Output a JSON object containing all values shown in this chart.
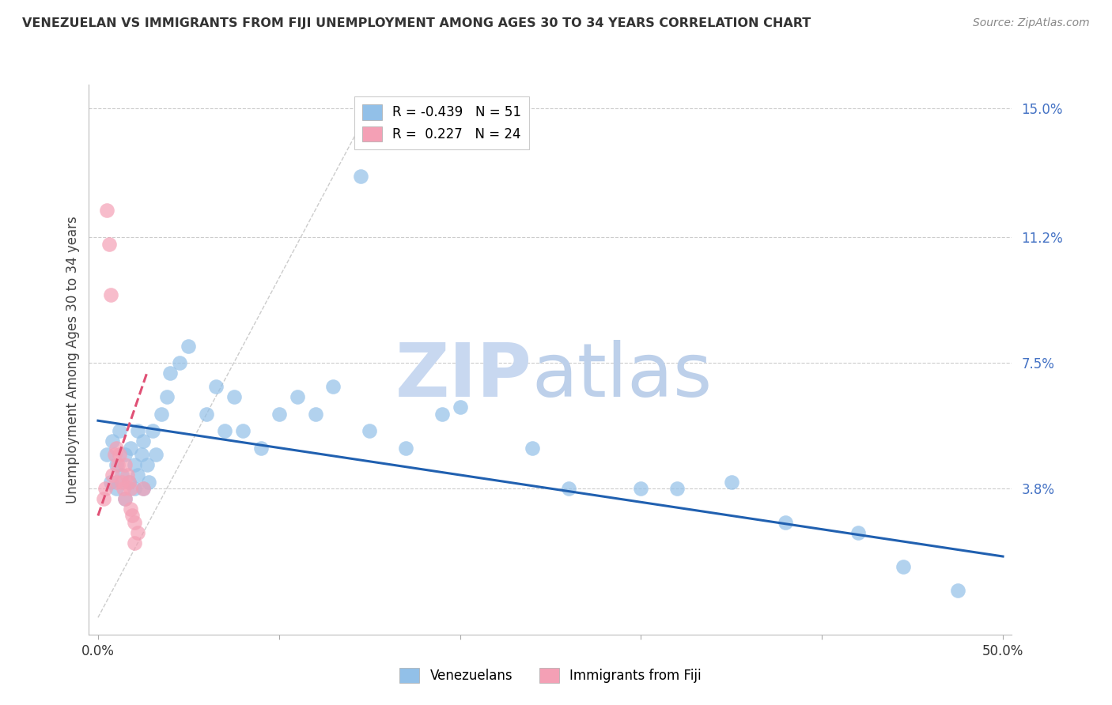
{
  "title": "VENEZUELAN VS IMMIGRANTS FROM FIJI UNEMPLOYMENT AMONG AGES 30 TO 34 YEARS CORRELATION CHART",
  "source": "Source: ZipAtlas.com",
  "ylabel": "Unemployment Among Ages 30 to 34 years",
  "xlabel_venezuelans": "Venezuelans",
  "xlabel_fiji": "Immigrants from Fiji",
  "xlim": [
    0.0,
    0.5
  ],
  "ylim": [
    0.0,
    0.155
  ],
  "ytick_vals": [
    0.038,
    0.075,
    0.112,
    0.15
  ],
  "ytick_labels": [
    "3.8%",
    "7.5%",
    "11.2%",
    "15.0%"
  ],
  "xtick_positions": [
    0.0,
    0.1,
    0.2,
    0.3,
    0.4,
    0.5
  ],
  "xtick_labels": [
    "0.0%",
    "",
    "",
    "",
    "",
    "50.0%"
  ],
  "venezuelans_R": -0.439,
  "venezuelans_N": 51,
  "fiji_R": 0.227,
  "fiji_N": 24,
  "blue_color": "#92C0E8",
  "blue_line_color": "#2060B0",
  "pink_color": "#F4A0B5",
  "pink_line_color": "#E05075",
  "title_color": "#333333",
  "source_color": "#888888",
  "right_tick_color": "#4472C4",
  "grid_color": "#CCCCCC",
  "watermark_zip_color": "#C8D8F0",
  "watermark_atlas_color": "#B0C8E8",
  "ven_x": [
    0.005,
    0.007,
    0.008,
    0.01,
    0.01,
    0.012,
    0.013,
    0.015,
    0.015,
    0.017,
    0.018,
    0.02,
    0.02,
    0.022,
    0.022,
    0.024,
    0.025,
    0.025,
    0.027,
    0.028,
    0.03,
    0.032,
    0.035,
    0.038,
    0.04,
    0.045,
    0.05,
    0.06,
    0.065,
    0.07,
    0.075,
    0.08,
    0.09,
    0.1,
    0.11,
    0.12,
    0.13,
    0.145,
    0.15,
    0.17,
    0.19,
    0.2,
    0.24,
    0.26,
    0.3,
    0.32,
    0.35,
    0.38,
    0.42,
    0.445,
    0.475
  ],
  "ven_y": [
    0.048,
    0.04,
    0.052,
    0.045,
    0.038,
    0.055,
    0.042,
    0.048,
    0.035,
    0.04,
    0.05,
    0.045,
    0.038,
    0.055,
    0.042,
    0.048,
    0.052,
    0.038,
    0.045,
    0.04,
    0.055,
    0.048,
    0.06,
    0.065,
    0.072,
    0.075,
    0.08,
    0.06,
    0.068,
    0.055,
    0.065,
    0.055,
    0.05,
    0.06,
    0.065,
    0.06,
    0.068,
    0.13,
    0.055,
    0.05,
    0.06,
    0.062,
    0.05,
    0.038,
    0.038,
    0.038,
    0.04,
    0.028,
    0.025,
    0.015,
    0.008
  ],
  "fiji_x": [
    0.003,
    0.004,
    0.005,
    0.006,
    0.007,
    0.008,
    0.009,
    0.01,
    0.01,
    0.011,
    0.012,
    0.013,
    0.014,
    0.015,
    0.015,
    0.016,
    0.017,
    0.018,
    0.018,
    0.019,
    0.02,
    0.02,
    0.022,
    0.025
  ],
  "fiji_y": [
    0.035,
    0.038,
    0.12,
    0.11,
    0.095,
    0.042,
    0.048,
    0.05,
    0.04,
    0.045,
    0.048,
    0.04,
    0.038,
    0.045,
    0.035,
    0.042,
    0.04,
    0.038,
    0.032,
    0.03,
    0.028,
    0.022,
    0.025,
    0.038
  ],
  "ven_trend_x": [
    0.0,
    0.5
  ],
  "ven_trend_y": [
    0.058,
    0.018
  ],
  "fiji_trend_x": [
    0.0,
    0.027
  ],
  "fiji_trend_y": [
    0.03,
    0.072
  ]
}
